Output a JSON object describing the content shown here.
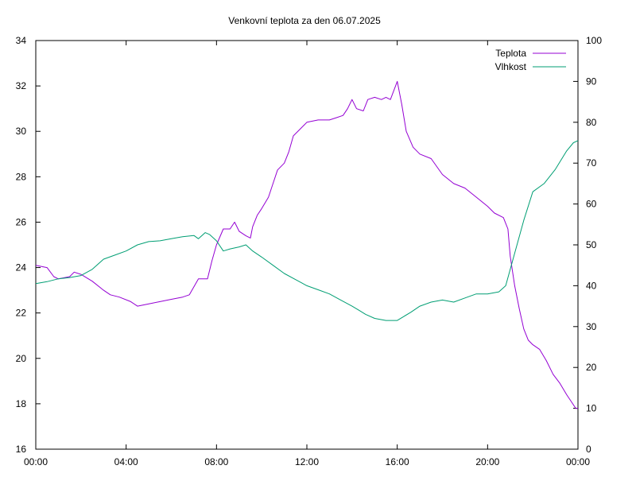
{
  "chart_data": {
    "type": "line",
    "title": "Venkovní teplota za den 06.07.2025",
    "xlabel": "",
    "ylabel": "",
    "y2label": "",
    "x_range_hours": [
      0,
      24
    ],
    "x_ticks": [
      {
        "h": 0,
        "label": "00:00"
      },
      {
        "h": 4,
        "label": "04:00"
      },
      {
        "h": 8,
        "label": "08:00"
      },
      {
        "h": 12,
        "label": "12:00"
      },
      {
        "h": 16,
        "label": "16:00"
      },
      {
        "h": 20,
        "label": "20:00"
      },
      {
        "h": 24,
        "label": "00:00"
      }
    ],
    "ylim": [
      16,
      34
    ],
    "y_ticks": [
      16,
      18,
      20,
      22,
      24,
      26,
      28,
      30,
      32,
      34
    ],
    "y2lim": [
      0,
      100
    ],
    "y2_ticks": [
      0,
      10,
      20,
      30,
      40,
      50,
      60,
      70,
      80,
      90,
      100
    ],
    "grid": false,
    "legend": "top-right",
    "series": [
      {
        "name": "Teplota",
        "axis": "left",
        "color": "#9400d3",
        "points": [
          [
            0.0,
            24.1
          ],
          [
            0.5,
            24.0
          ],
          [
            0.8,
            23.6
          ],
          [
            1.0,
            23.5
          ],
          [
            1.5,
            23.6
          ],
          [
            1.7,
            23.8
          ],
          [
            2.0,
            23.7
          ],
          [
            2.5,
            23.4
          ],
          [
            3.0,
            23.0
          ],
          [
            3.3,
            22.8
          ],
          [
            3.7,
            22.7
          ],
          [
            4.2,
            22.5
          ],
          [
            4.5,
            22.3
          ],
          [
            5.0,
            22.4
          ],
          [
            5.5,
            22.5
          ],
          [
            6.0,
            22.6
          ],
          [
            6.5,
            22.7
          ],
          [
            6.8,
            22.8
          ],
          [
            7.2,
            23.5
          ],
          [
            7.6,
            23.5
          ],
          [
            7.8,
            24.3
          ],
          [
            8.0,
            25.0
          ],
          [
            8.3,
            25.7
          ],
          [
            8.6,
            25.7
          ],
          [
            8.8,
            26.0
          ],
          [
            9.0,
            25.6
          ],
          [
            9.3,
            25.4
          ],
          [
            9.5,
            25.3
          ],
          [
            9.6,
            25.8
          ],
          [
            9.8,
            26.3
          ],
          [
            10.0,
            26.6
          ],
          [
            10.3,
            27.1
          ],
          [
            10.5,
            27.7
          ],
          [
            10.7,
            28.3
          ],
          [
            11.0,
            28.6
          ],
          [
            11.2,
            29.1
          ],
          [
            11.4,
            29.8
          ],
          [
            11.7,
            30.1
          ],
          [
            12.0,
            30.4
          ],
          [
            12.5,
            30.5
          ],
          [
            13.0,
            30.5
          ],
          [
            13.3,
            30.6
          ],
          [
            13.6,
            30.7
          ],
          [
            13.8,
            31.0
          ],
          [
            14.0,
            31.4
          ],
          [
            14.2,
            31.0
          ],
          [
            14.5,
            30.9
          ],
          [
            14.7,
            31.4
          ],
          [
            15.0,
            31.5
          ],
          [
            15.3,
            31.4
          ],
          [
            15.5,
            31.5
          ],
          [
            15.7,
            31.4
          ],
          [
            16.0,
            32.2
          ],
          [
            16.2,
            31.2
          ],
          [
            16.4,
            30.0
          ],
          [
            16.7,
            29.3
          ],
          [
            17.0,
            29.0
          ],
          [
            17.5,
            28.8
          ],
          [
            18.0,
            28.1
          ],
          [
            18.5,
            27.7
          ],
          [
            19.0,
            27.5
          ],
          [
            19.5,
            27.1
          ],
          [
            20.0,
            26.7
          ],
          [
            20.3,
            26.4
          ],
          [
            20.7,
            26.2
          ],
          [
            20.9,
            25.7
          ],
          [
            21.0,
            24.5
          ],
          [
            21.2,
            23.2
          ],
          [
            21.4,
            22.2
          ],
          [
            21.6,
            21.3
          ],
          [
            21.8,
            20.8
          ],
          [
            22.0,
            20.6
          ],
          [
            22.3,
            20.4
          ],
          [
            22.6,
            19.9
          ],
          [
            22.9,
            19.3
          ],
          [
            23.2,
            18.9
          ],
          [
            23.5,
            18.4
          ],
          [
            23.7,
            18.1
          ],
          [
            23.9,
            17.8
          ],
          [
            24.0,
            17.8
          ]
        ]
      },
      {
        "name": "Vlhkost",
        "axis": "right",
        "color": "#009e73",
        "points": [
          [
            0.0,
            40.5
          ],
          [
            0.5,
            41.0
          ],
          [
            1.0,
            41.7
          ],
          [
            1.5,
            42.0
          ],
          [
            2.0,
            42.5
          ],
          [
            2.5,
            44.0
          ],
          [
            3.0,
            46.5
          ],
          [
            3.5,
            47.5
          ],
          [
            4.0,
            48.5
          ],
          [
            4.5,
            50.0
          ],
          [
            5.0,
            50.8
          ],
          [
            5.5,
            51.0
          ],
          [
            6.0,
            51.5
          ],
          [
            6.5,
            52.0
          ],
          [
            7.0,
            52.3
          ],
          [
            7.2,
            51.5
          ],
          [
            7.5,
            53.0
          ],
          [
            7.7,
            52.5
          ],
          [
            8.0,
            51.0
          ],
          [
            8.3,
            48.5
          ],
          [
            8.6,
            49.0
          ],
          [
            9.0,
            49.5
          ],
          [
            9.3,
            50.0
          ],
          [
            9.6,
            48.5
          ],
          [
            10.0,
            47.0
          ],
          [
            10.5,
            45.0
          ],
          [
            11.0,
            43.0
          ],
          [
            11.5,
            41.5
          ],
          [
            12.0,
            40.0
          ],
          [
            12.5,
            39.0
          ],
          [
            13.0,
            38.0
          ],
          [
            13.5,
            36.5
          ],
          [
            14.0,
            35.0
          ],
          [
            14.3,
            34.0
          ],
          [
            14.6,
            33.0
          ],
          [
            15.0,
            32.0
          ],
          [
            15.5,
            31.5
          ],
          [
            16.0,
            31.5
          ],
          [
            16.3,
            32.5
          ],
          [
            16.6,
            33.5
          ],
          [
            17.0,
            35.0
          ],
          [
            17.5,
            36.0
          ],
          [
            18.0,
            36.5
          ],
          [
            18.5,
            36.0
          ],
          [
            19.0,
            37.0
          ],
          [
            19.5,
            38.0
          ],
          [
            20.0,
            38.0
          ],
          [
            20.5,
            38.5
          ],
          [
            20.8,
            40.0
          ],
          [
            21.0,
            44.0
          ],
          [
            21.3,
            50.0
          ],
          [
            21.6,
            56.0
          ],
          [
            22.0,
            63.0
          ],
          [
            22.5,
            65.0
          ],
          [
            23.0,
            68.5
          ],
          [
            23.5,
            73.0
          ],
          [
            23.8,
            75.0
          ],
          [
            24.0,
            75.5
          ]
        ]
      }
    ]
  }
}
